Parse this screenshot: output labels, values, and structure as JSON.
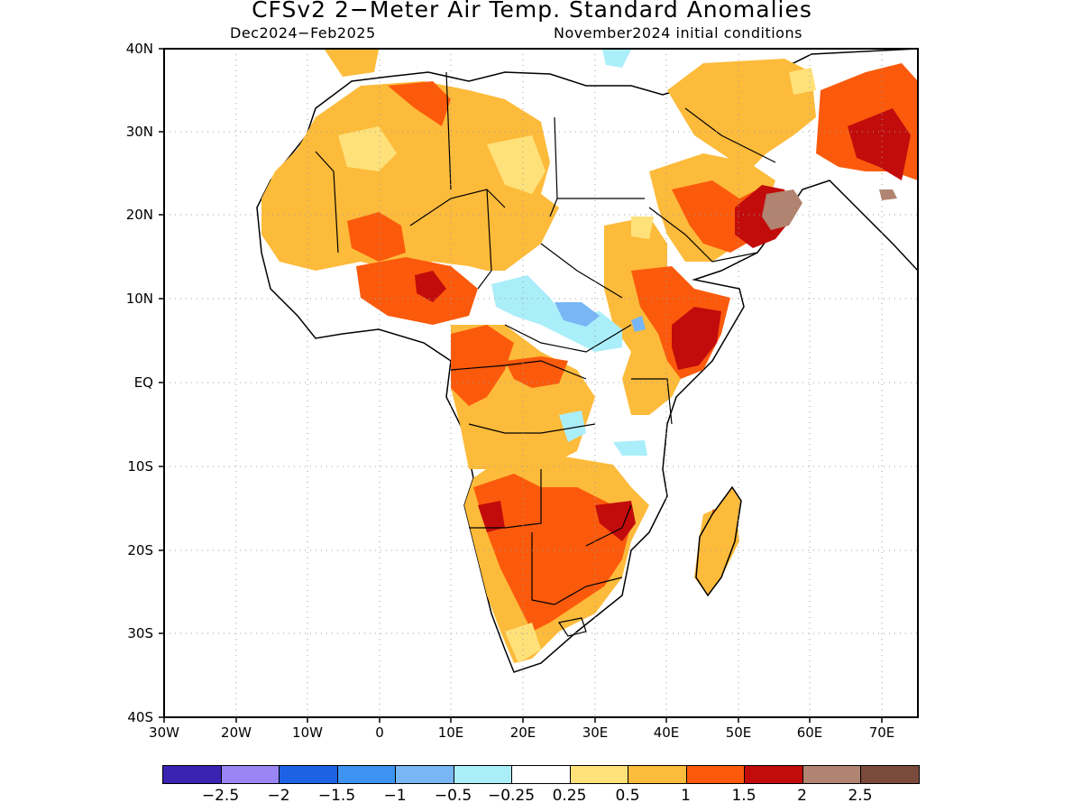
{
  "title": "CFSv2 2−Meter Air Temp. Standard Anomalies",
  "period": "Dec2024−Feb2025",
  "init": "November2024 initial conditions",
  "lat_labels": [
    "40N",
    "30N",
    "20N",
    "10N",
    "EQ",
    "10S",
    "20S",
    "30S",
    "40S"
  ],
  "lon_labels": [
    "30W",
    "20W",
    "10W",
    "0",
    "10E",
    "20E",
    "30E",
    "40E",
    "50E",
    "60E",
    "70E"
  ],
  "colorbar": {
    "colors": [
      "#3a22b3",
      "#9a85f5",
      "#1d62e4",
      "#3c93f0",
      "#78b6f5",
      "#aaeefa",
      "#ffffff",
      "#ffe17a",
      "#fdbb3b",
      "#fb5a0c",
      "#c20c0c",
      "#b08470",
      "#7a4a3a"
    ],
    "labels": [
      "−2.5",
      "−2",
      "−1.5",
      "−1",
      "−0.5",
      "−0.25",
      "0.25",
      "0.5",
      "1",
      "1.5",
      "2",
      "2.5"
    ]
  },
  "map": {
    "lon_range": [
      -30,
      75
    ],
    "lat_range": [
      -40,
      40
    ],
    "grid": "dotted"
  }
}
